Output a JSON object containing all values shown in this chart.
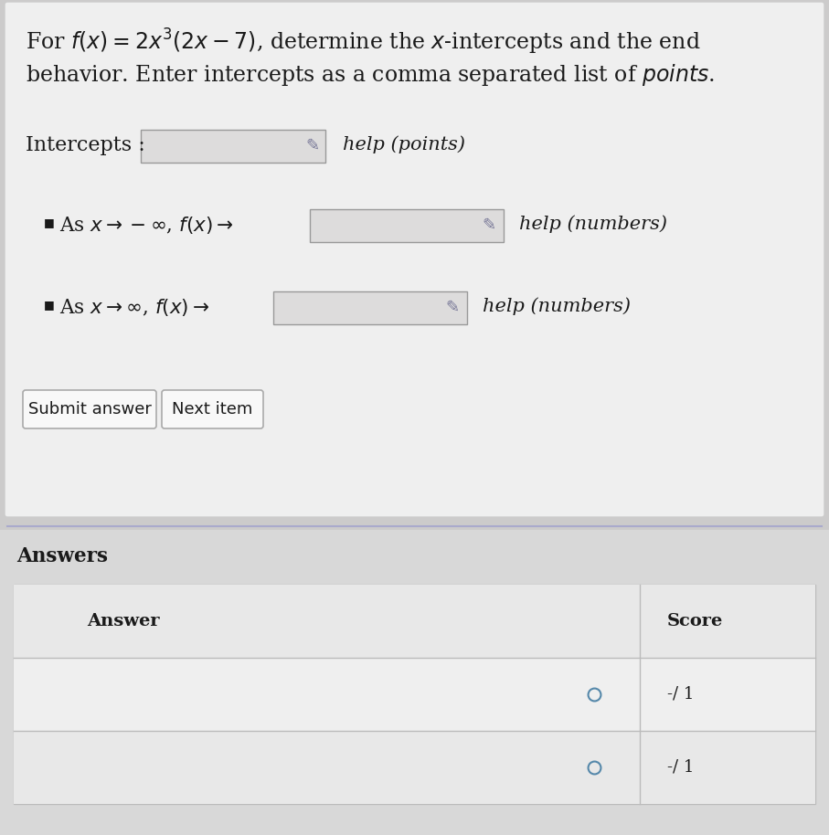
{
  "bg_color": "#cccbcb",
  "panel_bg": "#efefef",
  "panel_border": "#cccccc",
  "title_line1": "For $f(x) = 2x^{3}(2x-7)$, determine the $x$-intercepts and the end",
  "title_line2": "behavior. Enter intercepts as a comma separated list of $\\it{points}$.",
  "intercepts_label": "Intercepts :",
  "help_points": "help (points)",
  "bullet_label1": "As $x \\rightarrow -\\infty$, $f(x) \\rightarrow$",
  "help_numbers1": "help (numbers)",
  "bullet_label2": "As $x \\rightarrow \\infty$, $f(x) \\rightarrow$",
  "help_numbers2": "help (numbers)",
  "btn_submit": "Submit answer",
  "btn_next": "Next item",
  "answers_label": "Answers",
  "answer_col": "Answer",
  "score_col": "Score",
  "score1": "-/ 1",
  "score2": "-/ 1",
  "input_bg": "#dddcdc",
  "input_border": "#999999",
  "pencil_color": "#7a7a99",
  "btn_bg": "#f8f8f8",
  "btn_border": "#aaaaaa",
  "text_color": "#1a1a1a",
  "table_bg": "#f5f5f5",
  "table_header_bg": "#e8e8e8",
  "table_row1_bg": "#efefef",
  "table_row2_bg": "#e8e8e8",
  "table_border": "#bbbbbb",
  "answers_section_bg": "#d8d8d8",
  "circle_color": "#5588aa",
  "sep_color": "#aaaacc"
}
